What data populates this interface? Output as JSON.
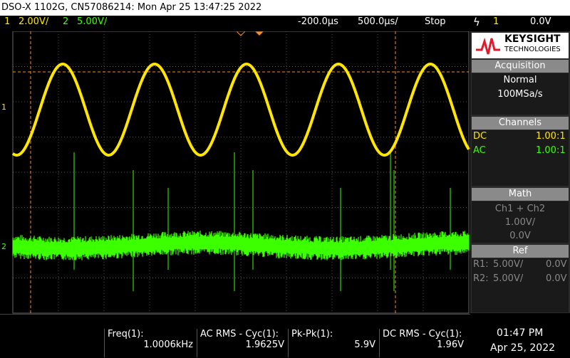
{
  "header": {
    "title": "DSO-X 1102G, CN57086214: Mon Apr 25 13:47:25 2022"
  },
  "status": {
    "ch1_num": "1",
    "ch1_scale": "2.00V/",
    "ch2_num": "2",
    "ch2_scale": "5.00V/",
    "delay": "-200.0µs",
    "timebase": "500.0µs/",
    "run_state": "Stop",
    "trigger_source": "1",
    "trigger_level": "0.0V"
  },
  "brand": {
    "name": "KEYSIGHT",
    "sub": "TECHNOLOGIES"
  },
  "acquisition": {
    "title": "Acquisition",
    "mode": "Normal",
    "rate": "100MSa/s"
  },
  "channels": {
    "title": "Channels",
    "rows": [
      [
        "DC",
        "1.00:1"
      ],
      [
        "AC",
        "1.00:1"
      ]
    ]
  },
  "math": {
    "title": "Math",
    "function": "Ch1 + Ch2",
    "scale": "1.00V/",
    "offset": "0.0V"
  },
  "ref": {
    "title": "Ref",
    "rows": [
      [
        "R1:",
        "5.00V/",
        "0.0V"
      ],
      [
        "R2:",
        "5.00V/",
        "0.0V"
      ]
    ]
  },
  "measurements": [
    {
      "label": "Freq(1):",
      "value": "1.0006kHz"
    },
    {
      "label": "AC RMS - Cyc(1):",
      "value": "1.9625V"
    },
    {
      "label": "Pk-Pk(1):",
      "value": "5.9V"
    },
    {
      "label": "DC RMS - Cyc(1):",
      "value": "1.96V"
    }
  ],
  "clock": {
    "time": "01:47 PM",
    "date": "Apr 25, 2022"
  }
}
